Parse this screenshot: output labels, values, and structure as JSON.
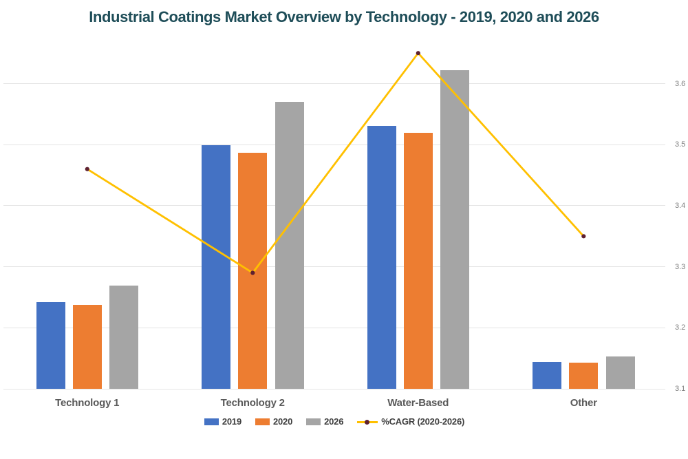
{
  "chart": {
    "title": "Industrial Coatings Market Overview by Technology - 2019, 2020 and 2026",
    "title_color": "#1e4d58"
  },
  "chart_data": {
    "type": "bar",
    "subtype": "combo bar + line, grouped columns with secondary-axis line",
    "title": "Industrial Coatings Market Overview by Technology - 2019, 2020 and 2026",
    "categories": [
      "Technology 1",
      "Technology 2",
      "Water-Based",
      "Other"
    ],
    "series": [
      {
        "name": "2019",
        "type": "bar",
        "color": "#4472C4",
        "axis": "left-hidden",
        "values": [
          25.8,
          72.3,
          78.0,
          7.9
        ]
      },
      {
        "name": "2020",
        "type": "bar",
        "color": "#ED7D31",
        "axis": "left-hidden",
        "values": [
          25.0,
          70.0,
          76.0,
          7.7
        ]
      },
      {
        "name": "2026",
        "type": "bar",
        "color": "#A5A5A5",
        "axis": "left-hidden",
        "values": [
          30.7,
          85.2,
          94.4,
          9.5
        ]
      },
      {
        "name": "%CAGR (2020-2026)",
        "type": "line",
        "color": "#FFC000",
        "marker_color": "#5E2130",
        "axis": "right",
        "values": [
          3.46,
          3.29,
          3.65,
          3.35
        ]
      }
    ],
    "bar_values_note": "left value axis is not shown in the image; bar values are relative heights expressed as % of plot-area height",
    "right_axis": {
      "min": 3.1,
      "max": 3.65,
      "tick_step": 0.1,
      "tick_labels": [
        "3.6",
        "3.5",
        "3.4",
        "3.3",
        "3.2",
        "3.1"
      ],
      "label_color": "#7f7f7f"
    },
    "xlabel": "",
    "ylabel": "",
    "grid": {
      "horizontal": true,
      "color": "#e4e4e4",
      "baseline_value": 3.1
    },
    "legend": {
      "position": "bottom",
      "entries": [
        "2019",
        "2020",
        "2026",
        "%CAGR (2020-2026)"
      ]
    },
    "text_colors": {
      "category_labels": "#595959",
      "legend_labels": "#404040"
    }
  }
}
